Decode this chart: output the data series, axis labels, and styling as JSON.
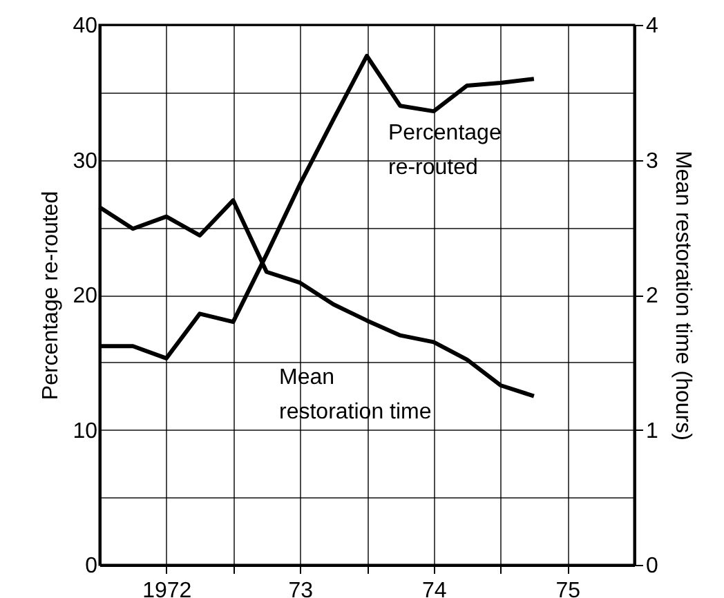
{
  "chart_data": {
    "type": "line",
    "xlabel": null,
    "ylabel": "Percentage re-routed",
    "y2label": "Mean restoration time (hours)",
    "x": [
      1971.5,
      1971.75,
      1972,
      1972.25,
      1972.5,
      1972.75,
      1973,
      1973.25,
      1973.5,
      1973.75,
      1974,
      1974.25,
      1974.5,
      1974.75
    ],
    "series": [
      {
        "name": "Percentage re-routed",
        "color": "#000000",
        "values": [
          16.2,
          16.2,
          15.3,
          18.6,
          18.0,
          23.0,
          28.2,
          33.0,
          37.7,
          34.0,
          33.6,
          35.5,
          35.7,
          36.0
        ]
      },
      {
        "name": "Mean restoration time",
        "color": "#000000",
        "axis": "y2",
        "values": [
          2.65,
          2.49,
          2.58,
          2.44,
          2.7,
          2.17,
          2.09,
          1.93,
          1.81,
          1.7,
          1.65,
          1.52,
          1.33,
          1.25
        ]
      }
    ],
    "xlim": [
      1971.5,
      1975.5
    ],
    "xticks": [
      {
        "value": 1972,
        "label": "1972"
      },
      {
        "value": 1972.5,
        "label": null
      },
      {
        "value": 1973,
        "label": "73"
      },
      {
        "value": 1973.5,
        "label": null
      },
      {
        "value": 1974,
        "label": "74"
      },
      {
        "value": 1974.5,
        "label": null
      },
      {
        "value": 1975,
        "label": "75"
      }
    ],
    "ylim": [
      0,
      40
    ],
    "yticks": [
      0,
      {
        "value": 5,
        "label": null
      },
      10,
      {
        "value": 15,
        "label": null
      },
      20,
      {
        "value": 25,
        "label": null
      },
      30,
      {
        "value": 35,
        "label": null
      },
      40
    ],
    "y2lim": [
      0,
      4
    ],
    "y2ticks": [
      0,
      1,
      2,
      3,
      4
    ],
    "grid": true,
    "legend": false,
    "line_style": "solid",
    "marker": "none"
  }
}
